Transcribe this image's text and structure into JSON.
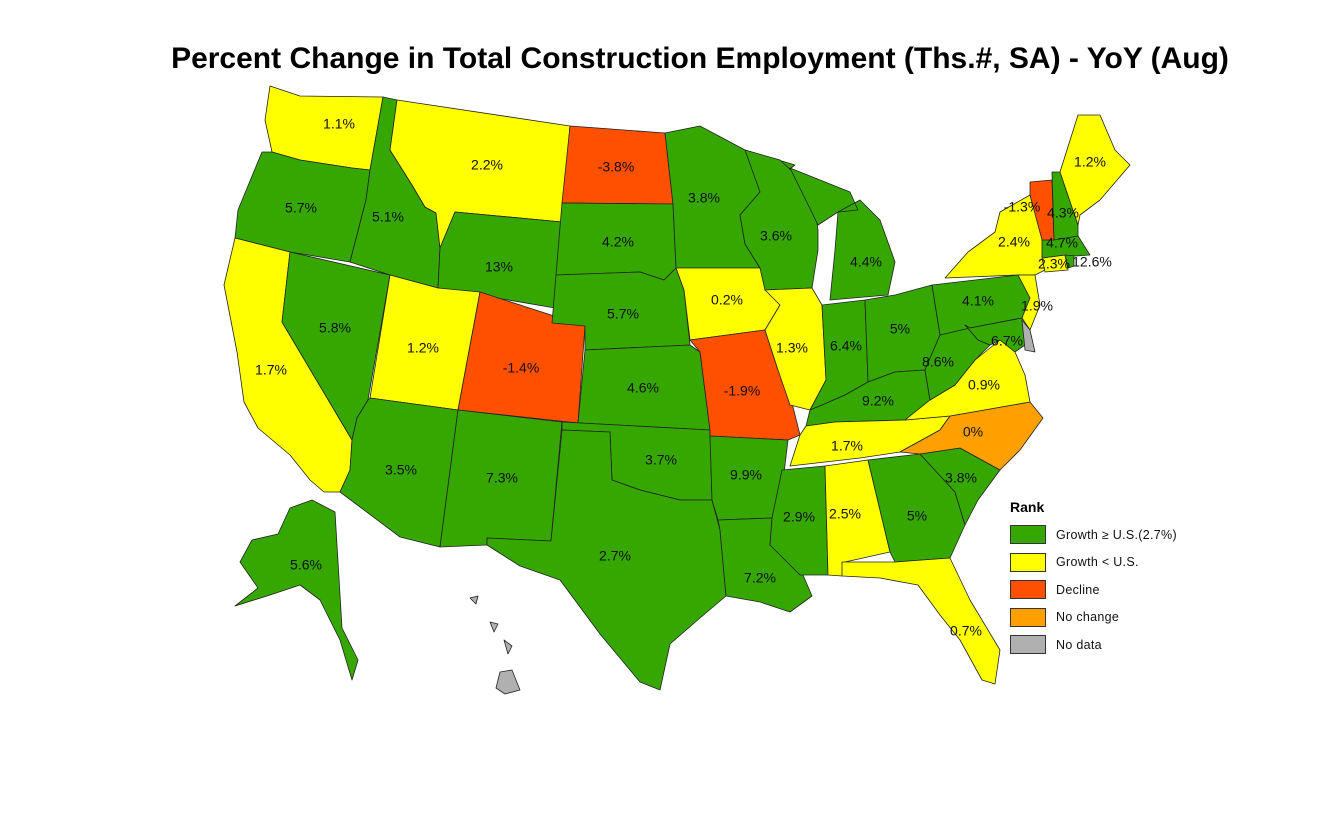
{
  "title": "Percent Change in Total Construction Employment (Ths.#, SA) - YoY (Aug)",
  "colors": {
    "growth_ge_us": "#36a600",
    "growth_lt_us": "#ffff00",
    "decline": "#ff5000",
    "no_change": "#ffa000",
    "no_data": "#b0b0b0"
  },
  "legend": {
    "title": "Rank",
    "items": [
      {
        "label": "Growth ≥ U.S.(2.7%)",
        "cat": "growth_ge_us"
      },
      {
        "label": "Growth < U.S.",
        "cat": "growth_lt_us"
      },
      {
        "label": "Decline",
        "cat": "decline"
      },
      {
        "label": "No change",
        "cat": "no_change"
      },
      {
        "label": "No data",
        "cat": "no_data"
      }
    ]
  },
  "states": {
    "WA": {
      "value": "1.1%",
      "cat": "growth_lt_us"
    },
    "OR": {
      "value": "5.7%",
      "cat": "growth_ge_us"
    },
    "CA": {
      "value": "1.7%",
      "cat": "growth_lt_us"
    },
    "NV": {
      "value": "5.8%",
      "cat": "growth_ge_us"
    },
    "ID": {
      "value": "5.1%",
      "cat": "growth_ge_us"
    },
    "MT": {
      "value": "2.2%",
      "cat": "growth_lt_us"
    },
    "WY": {
      "value": "13%",
      "cat": "growth_ge_us"
    },
    "UT": {
      "value": "1.2%",
      "cat": "growth_lt_us"
    },
    "CO": {
      "value": "-1.4%",
      "cat": "decline"
    },
    "AZ": {
      "value": "3.5%",
      "cat": "growth_ge_us"
    },
    "NM": {
      "value": "7.3%",
      "cat": "growth_ge_us"
    },
    "ND": {
      "value": "-3.8%",
      "cat": "decline"
    },
    "SD": {
      "value": "4.2%",
      "cat": "growth_ge_us"
    },
    "NE": {
      "value": "5.7%",
      "cat": "growth_ge_us"
    },
    "KS": {
      "value": "4.6%",
      "cat": "growth_ge_us"
    },
    "OK": {
      "value": "3.7%",
      "cat": "growth_ge_us"
    },
    "TX": {
      "value": "2.7%",
      "cat": "growth_ge_us"
    },
    "MN": {
      "value": "3.8%",
      "cat": "growth_ge_us"
    },
    "IA": {
      "value": "0.2%",
      "cat": "growth_lt_us"
    },
    "MO": {
      "value": "-1.9%",
      "cat": "decline"
    },
    "AR": {
      "value": "9.9%",
      "cat": "growth_ge_us"
    },
    "LA": {
      "value": "7.2%",
      "cat": "growth_ge_us"
    },
    "WI": {
      "value": "3.6%",
      "cat": "growth_ge_us"
    },
    "IL": {
      "value": "1.3%",
      "cat": "growth_lt_us"
    },
    "MI": {
      "value": "4.4%",
      "cat": "growth_ge_us"
    },
    "IN": {
      "value": "6.4%",
      "cat": "growth_ge_us"
    },
    "OH": {
      "value": "5%",
      "cat": "growth_ge_us"
    },
    "KY": {
      "value": "9.2%",
      "cat": "growth_ge_us"
    },
    "TN": {
      "value": "1.7%",
      "cat": "growth_lt_us"
    },
    "MS": {
      "value": "2.9%",
      "cat": "growth_ge_us"
    },
    "AL": {
      "value": "2.5%",
      "cat": "growth_lt_us"
    },
    "GA": {
      "value": "5%",
      "cat": "growth_ge_us"
    },
    "FL": {
      "value": "0.7%",
      "cat": "growth_lt_us"
    },
    "SC": {
      "value": "3.8%",
      "cat": "growth_ge_us"
    },
    "NC": {
      "value": "0%",
      "cat": "no_change"
    },
    "VA": {
      "value": "0.9%",
      "cat": "growth_lt_us"
    },
    "WV": {
      "value": "8.6%",
      "cat": "growth_ge_us"
    },
    "PA": {
      "value": "4.1%",
      "cat": "growth_ge_us"
    },
    "NY": {
      "value": "2.4%",
      "cat": "growth_lt_us"
    },
    "NJ": {
      "value": "1.9%",
      "cat": "growth_lt_us"
    },
    "MD": {
      "value": "6.7%",
      "cat": "growth_ge_us"
    },
    "DE": {
      "value": "",
      "cat": "no_data"
    },
    "CT": {
      "value": "2.3%",
      "cat": "growth_lt_us"
    },
    "RI": {
      "value": "12.6%",
      "cat": "growth_ge_us"
    },
    "MA": {
      "value": "4.7%",
      "cat": "growth_ge_us"
    },
    "VT": {
      "value": "-1.3%",
      "cat": "decline"
    },
    "NH": {
      "value": "4.3%",
      "cat": "growth_ge_us"
    },
    "ME": {
      "value": "1.2%",
      "cat": "growth_lt_us"
    },
    "AK": {
      "value": "5.6%",
      "cat": "growth_ge_us"
    },
    "HI": {
      "value": "",
      "cat": "no_data"
    }
  }
}
